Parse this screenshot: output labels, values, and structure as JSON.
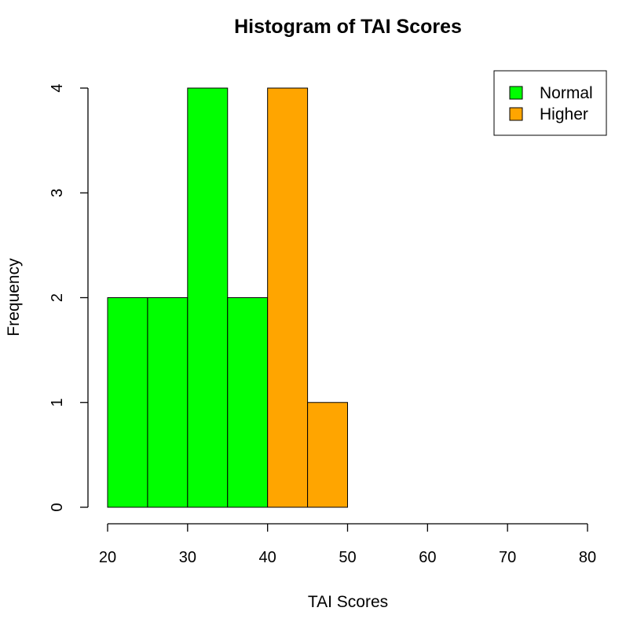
{
  "chart_data": {
    "type": "bar",
    "title": "Histogram of TAI Scores",
    "xlabel": "TAI Scores",
    "ylabel": "Frequency",
    "xlim": [
      20,
      80
    ],
    "ylim": [
      0,
      4
    ],
    "x_ticks": [
      20,
      30,
      40,
      50,
      60,
      70,
      80
    ],
    "y_ticks": [
      0,
      1,
      2,
      3,
      4
    ],
    "bin_edges": [
      20,
      25,
      30,
      35,
      40,
      45,
      50
    ],
    "series": [
      {
        "name": "Normal",
        "color": "#00ff00",
        "bins": [
          [
            20,
            25
          ],
          [
            25,
            30
          ],
          [
            30,
            35
          ],
          [
            35,
            40
          ]
        ],
        "values": [
          2,
          2,
          4,
          2
        ]
      },
      {
        "name": "Higher",
        "color": "#ffa500",
        "bins": [
          [
            40,
            45
          ],
          [
            45,
            50
          ]
        ],
        "values": [
          4,
          1
        ]
      }
    ],
    "legend": {
      "position": "top-right",
      "entries": [
        {
          "label": "Normal",
          "color": "#00ff00"
        },
        {
          "label": "Higher",
          "color": "#ffa500"
        }
      ]
    },
    "grid": false
  }
}
